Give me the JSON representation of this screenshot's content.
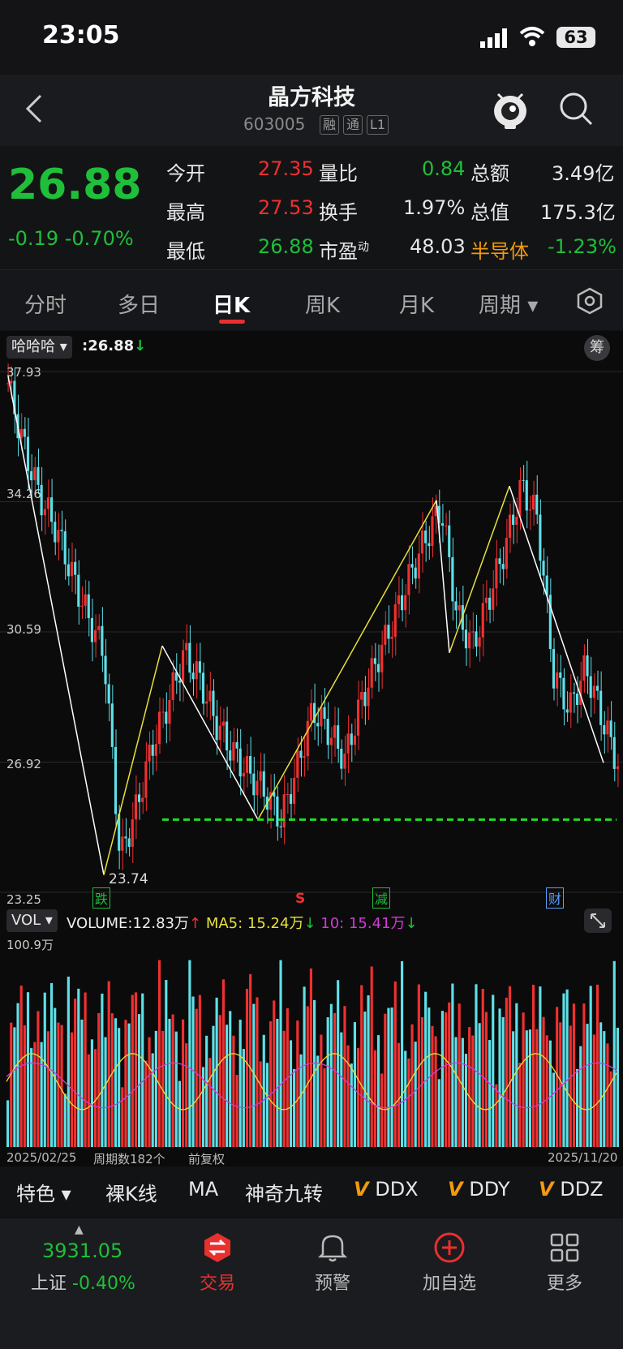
{
  "status": {
    "time": "23:05",
    "battery": "63"
  },
  "header": {
    "title": "晶方科技",
    "code": "603005",
    "tags": [
      "融",
      "通",
      "L1"
    ]
  },
  "quote": {
    "price": "26.88",
    "change": "-0.19",
    "change_pct": "-0.70%",
    "open_label": "今开",
    "open": "27.35",
    "high_label": "最高",
    "high": "27.53",
    "low_label": "最低",
    "low": "26.88",
    "vol_ratio_label": "量比",
    "vol_ratio": "0.84",
    "turnover_label": "换手",
    "turnover": "1.97%",
    "pe_label": "市盈",
    "pe_sup": "动",
    "pe": "48.03",
    "amount_label": "总额",
    "amount": "3.49亿",
    "mktcap_label": "总值",
    "mktcap": "175.3亿",
    "sector_label": "半导体",
    "sector_chg": "-1.23%"
  },
  "tabs": [
    "分时",
    "多日",
    "日K",
    "周K",
    "月K",
    "周期"
  ],
  "chart": {
    "indicator_select": "哈哈哈",
    "indicator_value": ":26.88",
    "chip_btn": "筹",
    "price_ticks": [
      "37.93",
      "34.26",
      "30.59",
      "26.92",
      "23.25"
    ],
    "low_marker": "23.74",
    "signals": [
      "跌",
      "S",
      "减",
      "财"
    ],
    "vol_select": "VOL",
    "volume_label": "VOLUME:",
    "volume_value": "12.83万",
    "ma5_label": "MA5:",
    "ma5_value": "15.24万",
    "ma10_label": "10:",
    "ma10_value": "15.41万",
    "vol_max": "100.9万",
    "start_date": "2025/02/25",
    "period_count": "周期数182个",
    "adjust": "前复权",
    "end_date": "2025/11/20",
    "colors": {
      "up": "#f0302f",
      "down": "#5fe0e8",
      "zigzag_up": "#e6e03a",
      "zigzag_down": "#ffffff",
      "support": "#22dd22",
      "ma5": "#e6e03a",
      "ma10": "#d13ad6"
    }
  },
  "chart_data": {
    "type": "candlestick",
    "price_axis": [
      23.25,
      37.93
    ],
    "candles_close_approx": [
      37.6,
      35.8,
      34.4,
      33.5,
      32.2,
      31.0,
      30.0,
      24.2,
      25.6,
      27.4,
      28.6,
      30.0,
      29.2,
      28.0,
      27.2,
      26.6,
      26.1,
      25.3,
      26.7,
      28.4,
      27.8,
      27.0,
      28.6,
      29.8,
      30.9,
      32.1,
      33.2,
      34.1,
      31.0,
      30.2,
      31.6,
      33.0,
      34.7,
      33.8,
      29.4,
      28.4,
      29.6,
      28.2,
      26.88
    ],
    "zigzag_points": [
      37.8,
      23.74,
      30.2,
      25.3,
      34.3,
      30.0,
      34.7,
      26.9
    ],
    "support_level": 25.3,
    "volume_max": "100.9万"
  },
  "toolbar": {
    "feature": "特色",
    "items": [
      "裸K线",
      "MA",
      "神奇九转"
    ],
    "v_items": [
      "DDX",
      "DDY",
      "DDZ"
    ]
  },
  "bottom": {
    "index_value": "3931.05",
    "index_name": "上证",
    "index_chg": "-0.40%",
    "nav": [
      "交易",
      "预警",
      "加自选",
      "更多"
    ]
  }
}
